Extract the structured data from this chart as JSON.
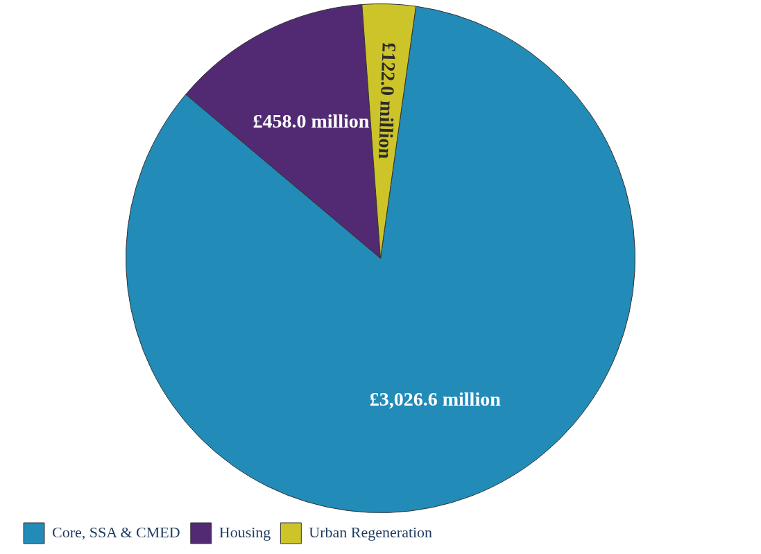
{
  "chart_data": {
    "type": "pie",
    "categories": [
      "Core, SSA & CMED",
      "Housing",
      "Urban Regeneration"
    ],
    "values": [
      3026.6,
      458.0,
      122.0
    ],
    "colors": [
      "#228bb8",
      "#522a74",
      "#cdc42a"
    ],
    "value_labels": [
      "£3,026.6 million",
      "£458.0 million",
      "£122.0 million"
    ],
    "legend": "bottom left"
  }
}
